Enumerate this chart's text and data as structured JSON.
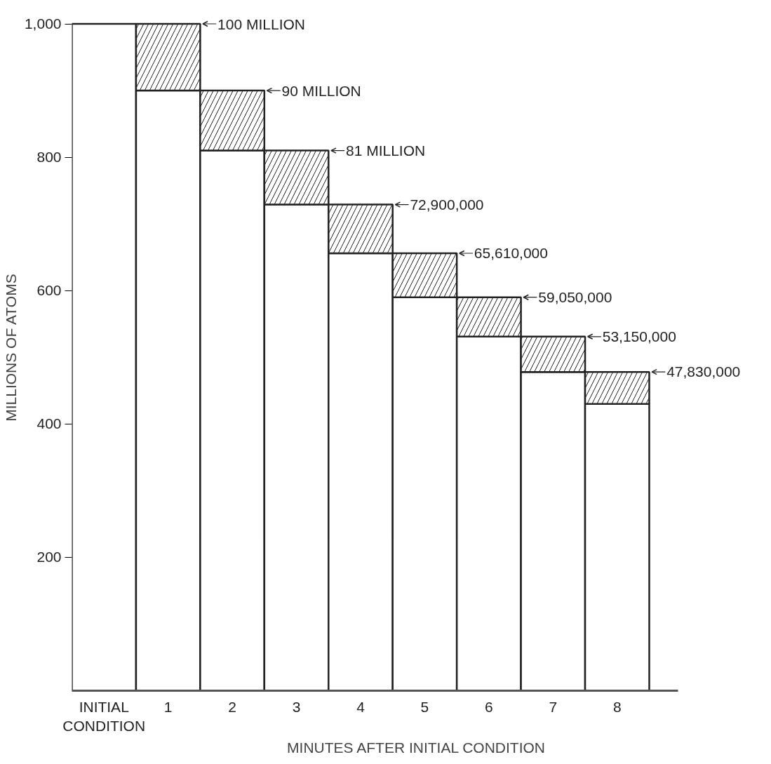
{
  "chart_data": {
    "type": "bar",
    "stacked": true,
    "xlabel": "MINUTES AFTER INITIAL CONDITION",
    "ylabel": "MILLIONS OF ATOMS",
    "categories": [
      "INITIAL\nCONDITION",
      "1",
      "2",
      "3",
      "4",
      "5",
      "6",
      "7",
      "8"
    ],
    "series": [
      {
        "color": "#ffffff",
        "values": [
          1000,
          900,
          810,
          729,
          656,
          590,
          531,
          478,
          430
        ]
      },
      {
        "color": "#ffffff",
        "values": [
          null,
          100,
          90,
          81,
          73,
          66,
          59,
          53,
          48
        ]
      }
    ],
    "annotations": [
      "100 MILLION",
      "90 MILLION",
      "81 MILLION",
      "72,900,000",
      "65,610,000",
      "59,050,000",
      "53,150,000",
      "47,830,000"
    ],
    "ylim": [
      0,
      1000
    ],
    "yticks": [
      200,
      400,
      600,
      800,
      {
        "value": 1000,
        "label": "1,000"
      }
    ],
    "grid": false
  }
}
